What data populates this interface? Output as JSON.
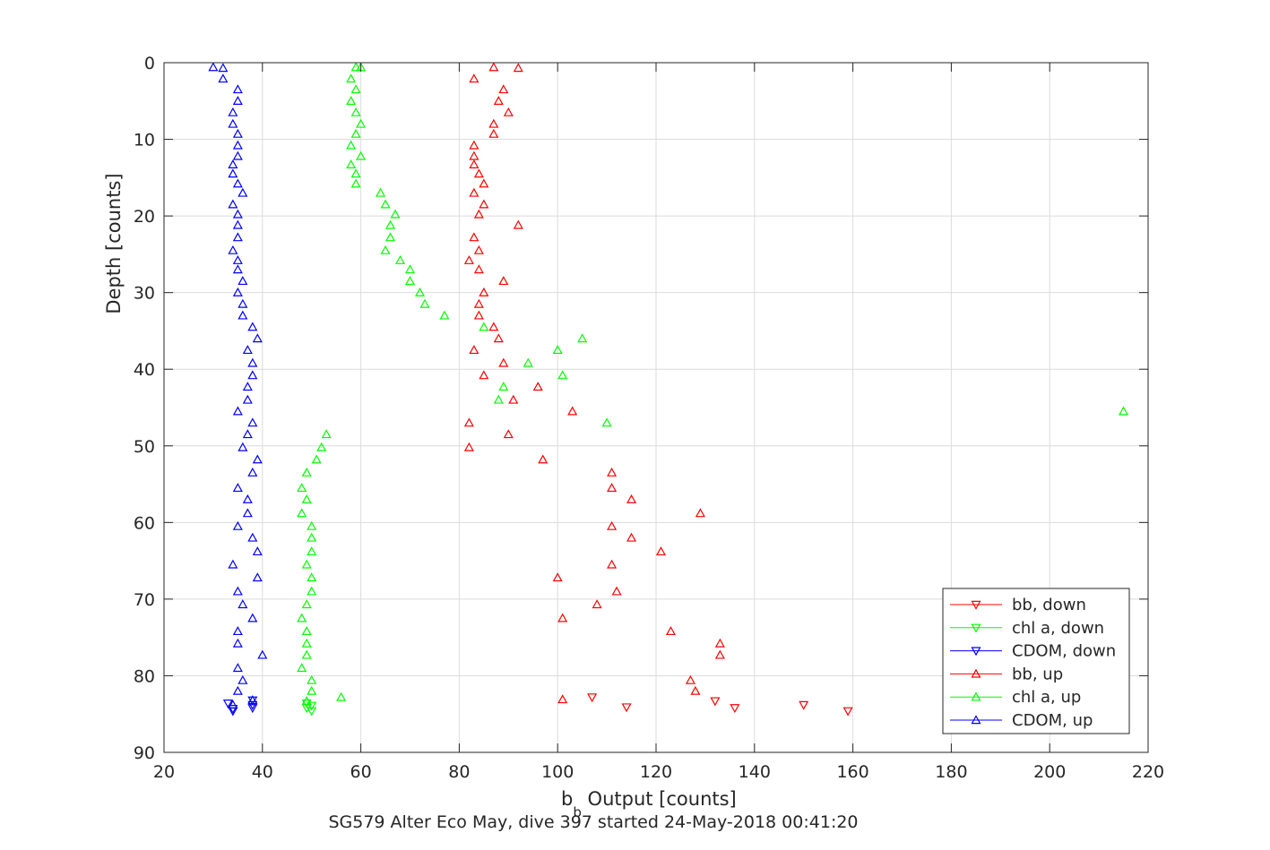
{
  "chart_data": {
    "type": "scatter",
    "xlabel_main": "b",
    "xlabel_sub": "b",
    "xlabel_rest": " Output [counts]",
    "ylabel": "Depth [counts]",
    "caption": "SG579 Alter Eco May, dive 397 started 24-May-2018 00:41:20",
    "xlim": [
      20,
      220
    ],
    "ylim": [
      0,
      90
    ],
    "y_reversed": true,
    "grid": true,
    "legend_position": "bottom-right",
    "xticks": [
      20,
      40,
      60,
      80,
      100,
      120,
      140,
      160,
      180,
      200,
      220
    ],
    "yticks": [
      0,
      10,
      20,
      30,
      40,
      50,
      60,
      70,
      80,
      90
    ],
    "series": [
      {
        "name": "bb, down",
        "color": "#ff0000",
        "marker": "triangle-down",
        "points": [
          [
            107,
            82.8
          ],
          [
            132,
            83.3
          ],
          [
            136,
            84.2
          ],
          [
            150,
            83.8
          ],
          [
            159,
            84.6
          ],
          [
            114,
            84.1
          ]
        ]
      },
      {
        "name": "chl a, down",
        "color": "#00ff00",
        "marker": "triangle-down",
        "points": [
          [
            49,
            83.6
          ],
          [
            50,
            83.9
          ],
          [
            49,
            84.2
          ],
          [
            50,
            84.6
          ]
        ]
      },
      {
        "name": "CDOM, down",
        "color": "#0000ff",
        "marker": "triangle-down",
        "points": [
          [
            33,
            83.6
          ],
          [
            38,
            83.2
          ],
          [
            38,
            83.8
          ],
          [
            34,
            84.3
          ],
          [
            38,
            84.2
          ],
          [
            34,
            84.6
          ]
        ]
      },
      {
        "name": "bb, up",
        "color": "#ff0000",
        "marker": "triangle-up",
        "points": [
          [
            87,
            0.6
          ],
          [
            92,
            0.7
          ],
          [
            83,
            2.1
          ],
          [
            89,
            3.5
          ],
          [
            88,
            5
          ],
          [
            90,
            6.5
          ],
          [
            87,
            8
          ],
          [
            87,
            9.3
          ],
          [
            83,
            10.8
          ],
          [
            83,
            12.2
          ],
          [
            83,
            13.3
          ],
          [
            84,
            14.5
          ],
          [
            85,
            15.8
          ],
          [
            83,
            17
          ],
          [
            85,
            18.5
          ],
          [
            84,
            19.8
          ],
          [
            92,
            21.2
          ],
          [
            83,
            22.8
          ],
          [
            84,
            24.5
          ],
          [
            82,
            25.8
          ],
          [
            84,
            27
          ],
          [
            89,
            28.5
          ],
          [
            85,
            30
          ],
          [
            84,
            31.5
          ],
          [
            84,
            33
          ],
          [
            87,
            34.5
          ],
          [
            88,
            36
          ],
          [
            83,
            37.5
          ],
          [
            89,
            39.2
          ],
          [
            85,
            40.8
          ],
          [
            96,
            42.3
          ],
          [
            91,
            44
          ],
          [
            103,
            45.5
          ],
          [
            82,
            47
          ],
          [
            90,
            48.5
          ],
          [
            82,
            50.2
          ],
          [
            97,
            51.8
          ],
          [
            111,
            53.5
          ],
          [
            111,
            55.5
          ],
          [
            115,
            57
          ],
          [
            129,
            58.8
          ],
          [
            111,
            60.5
          ],
          [
            115,
            62
          ],
          [
            121,
            63.8
          ],
          [
            111,
            65.5
          ],
          [
            100,
            67.2
          ],
          [
            112,
            69
          ],
          [
            108,
            70.7
          ],
          [
            101,
            72.5
          ],
          [
            123,
            74.2
          ],
          [
            133,
            75.8
          ],
          [
            133,
            77.3
          ],
          [
            127,
            80.6
          ],
          [
            128,
            82
          ],
          [
            101,
            83.1
          ]
        ]
      },
      {
        "name": "chl a, up",
        "color": "#00ff00",
        "marker": "triangle-up",
        "points": [
          [
            59,
            0.6
          ],
          [
            60,
            0.6
          ],
          [
            58,
            2.1
          ],
          [
            59,
            3.5
          ],
          [
            58,
            5
          ],
          [
            59,
            6.5
          ],
          [
            60,
            8
          ],
          [
            59,
            9.3
          ],
          [
            58,
            10.8
          ],
          [
            60,
            12.2
          ],
          [
            58,
            13.3
          ],
          [
            59,
            14.5
          ],
          [
            59,
            15.8
          ],
          [
            64,
            17
          ],
          [
            65,
            18.5
          ],
          [
            67,
            19.8
          ],
          [
            66,
            21.2
          ],
          [
            66,
            22.8
          ],
          [
            65,
            24.5
          ],
          [
            68,
            25.8
          ],
          [
            70,
            27
          ],
          [
            70,
            28.5
          ],
          [
            72,
            30
          ],
          [
            73,
            31.5
          ],
          [
            77,
            33
          ],
          [
            85,
            34.5
          ],
          [
            105,
            36
          ],
          [
            100,
            37.5
          ],
          [
            94,
            39.2
          ],
          [
            101,
            40.8
          ],
          [
            89,
            42.3
          ],
          [
            88,
            44
          ],
          [
            215,
            45.5
          ],
          [
            110,
            47
          ],
          [
            53,
            48.5
          ],
          [
            52,
            50.2
          ],
          [
            51,
            51.8
          ],
          [
            49,
            53.5
          ],
          [
            48,
            55.5
          ],
          [
            49,
            57
          ],
          [
            48,
            58.8
          ],
          [
            50,
            60.5
          ],
          [
            50,
            62
          ],
          [
            50,
            63.8
          ],
          [
            49,
            65.5
          ],
          [
            50,
            67.2
          ],
          [
            50,
            69
          ],
          [
            49,
            70.7
          ],
          [
            48,
            72.5
          ],
          [
            49,
            74.2
          ],
          [
            49,
            75.8
          ],
          [
            49,
            77.3
          ],
          [
            48,
            79
          ],
          [
            50,
            80.6
          ],
          [
            50,
            82
          ],
          [
            56,
            82.8
          ],
          [
            49,
            83.3
          ]
        ]
      },
      {
        "name": "CDOM, up",
        "color": "#0000ff",
        "marker": "triangle-up",
        "points": [
          [
            30,
            0.6
          ],
          [
            32,
            0.7
          ],
          [
            32,
            2.1
          ],
          [
            35,
            3.5
          ],
          [
            35,
            5
          ],
          [
            34,
            6.5
          ],
          [
            34,
            8
          ],
          [
            35,
            9.3
          ],
          [
            35,
            10.8
          ],
          [
            35,
            12.2
          ],
          [
            34,
            13.3
          ],
          [
            34,
            14.5
          ],
          [
            35,
            15.8
          ],
          [
            36,
            17
          ],
          [
            34,
            18.5
          ],
          [
            35,
            19.8
          ],
          [
            35,
            21.2
          ],
          [
            35,
            22.8
          ],
          [
            34,
            24.5
          ],
          [
            35,
            25.8
          ],
          [
            35,
            27
          ],
          [
            36,
            28.5
          ],
          [
            35,
            30
          ],
          [
            36,
            31.5
          ],
          [
            36,
            33
          ],
          [
            38,
            34.5
          ],
          [
            39,
            36
          ],
          [
            37,
            37.5
          ],
          [
            38,
            39.2
          ],
          [
            38,
            40.8
          ],
          [
            37,
            42.3
          ],
          [
            37,
            44
          ],
          [
            35,
            45.5
          ],
          [
            38,
            47
          ],
          [
            37,
            48.5
          ],
          [
            36,
            50.2
          ],
          [
            39,
            51.8
          ],
          [
            38,
            53.5
          ],
          [
            35,
            55.5
          ],
          [
            37,
            57
          ],
          [
            37,
            58.8
          ],
          [
            35,
            60.5
          ],
          [
            38,
            62
          ],
          [
            39,
            63.8
          ],
          [
            34,
            65.5
          ],
          [
            39,
            67.2
          ],
          [
            35,
            69
          ],
          [
            36,
            70.7
          ],
          [
            38,
            72.5
          ],
          [
            35,
            74.2
          ],
          [
            35,
            75.8
          ],
          [
            40,
            77.3
          ],
          [
            35,
            79
          ],
          [
            36,
            80.6
          ],
          [
            35,
            82
          ],
          [
            38,
            83.2
          ],
          [
            34,
            83.8
          ]
        ]
      }
    ]
  }
}
